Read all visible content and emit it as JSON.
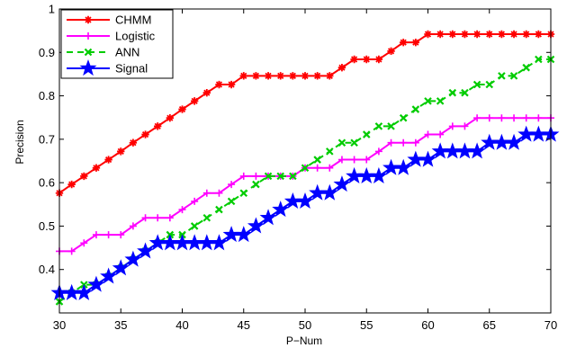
{
  "chart_data": {
    "type": "line",
    "xlabel": "P−Num",
    "ylabel": "Precision",
    "xlim": [
      30,
      70
    ],
    "ylim": [
      0.3,
      1.0
    ],
    "xticks": [
      "30",
      "35",
      "40",
      "45",
      "50",
      "55",
      "60",
      "65",
      "70"
    ],
    "yticks": [
      "0.4",
      "0.5",
      "0.6",
      "0.7",
      "0.8",
      "0.9",
      "1"
    ],
    "grid": false,
    "legend_position": "top-left",
    "x": [
      30,
      31,
      32,
      33,
      34,
      35,
      36,
      37,
      38,
      39,
      40,
      41,
      42,
      43,
      44,
      45,
      46,
      47,
      48,
      49,
      50,
      51,
      52,
      53,
      54,
      55,
      56,
      57,
      58,
      59,
      60,
      61,
      62,
      63,
      64,
      65,
      66,
      67,
      68,
      69,
      70
    ],
    "series": [
      {
        "name": "CHMM",
        "color": "#ff0000",
        "marker": "asterisk",
        "values": [
          0.576,
          0.596,
          0.615,
          0.634,
          0.653,
          0.672,
          0.692,
          0.711,
          0.73,
          0.749,
          0.769,
          0.788,
          0.807,
          0.826,
          0.826,
          0.846,
          0.846,
          0.846,
          0.846,
          0.846,
          0.846,
          0.846,
          0.846,
          0.865,
          0.884,
          0.884,
          0.884,
          0.903,
          0.923,
          0.923,
          0.942,
          0.942,
          0.942,
          0.942,
          0.942,
          0.942,
          0.942,
          0.942,
          0.942,
          0.942,
          0.942
        ]
      },
      {
        "name": "Logistic",
        "color": "#ff00ff",
        "marker": "plus",
        "values": [
          0.442,
          0.442,
          0.461,
          0.48,
          0.48,
          0.48,
          0.5,
          0.519,
          0.519,
          0.519,
          0.538,
          0.557,
          0.576,
          0.576,
          0.596,
          0.615,
          0.615,
          0.615,
          0.615,
          0.615,
          0.634,
          0.634,
          0.634,
          0.653,
          0.653,
          0.653,
          0.672,
          0.692,
          0.692,
          0.692,
          0.711,
          0.711,
          0.73,
          0.73,
          0.749,
          0.749,
          0.749,
          0.749,
          0.749,
          0.749,
          0.749
        ]
      },
      {
        "name": "ANN",
        "color": "#00cc00",
        "marker": "x",
        "values": [
          0.326,
          0.346,
          0.365,
          0.365,
          0.384,
          0.403,
          0.423,
          0.442,
          0.461,
          0.48,
          0.48,
          0.5,
          0.519,
          0.538,
          0.557,
          0.576,
          0.596,
          0.615,
          0.615,
          0.615,
          0.634,
          0.653,
          0.672,
          0.692,
          0.692,
          0.711,
          0.73,
          0.73,
          0.749,
          0.769,
          0.788,
          0.788,
          0.807,
          0.807,
          0.826,
          0.826,
          0.846,
          0.846,
          0.865,
          0.884,
          0.884
        ]
      },
      {
        "name": "Signal",
        "color": "#0000ff",
        "marker": "star",
        "values": [
          0.346,
          0.346,
          0.346,
          0.365,
          0.384,
          0.403,
          0.423,
          0.442,
          0.461,
          0.461,
          0.461,
          0.461,
          0.461,
          0.461,
          0.48,
          0.48,
          0.5,
          0.519,
          0.538,
          0.557,
          0.557,
          0.576,
          0.576,
          0.596,
          0.615,
          0.615,
          0.615,
          0.634,
          0.634,
          0.653,
          0.653,
          0.672,
          0.672,
          0.672,
          0.672,
          0.692,
          0.692,
          0.692,
          0.711,
          0.711,
          0.711
        ]
      }
    ]
  }
}
